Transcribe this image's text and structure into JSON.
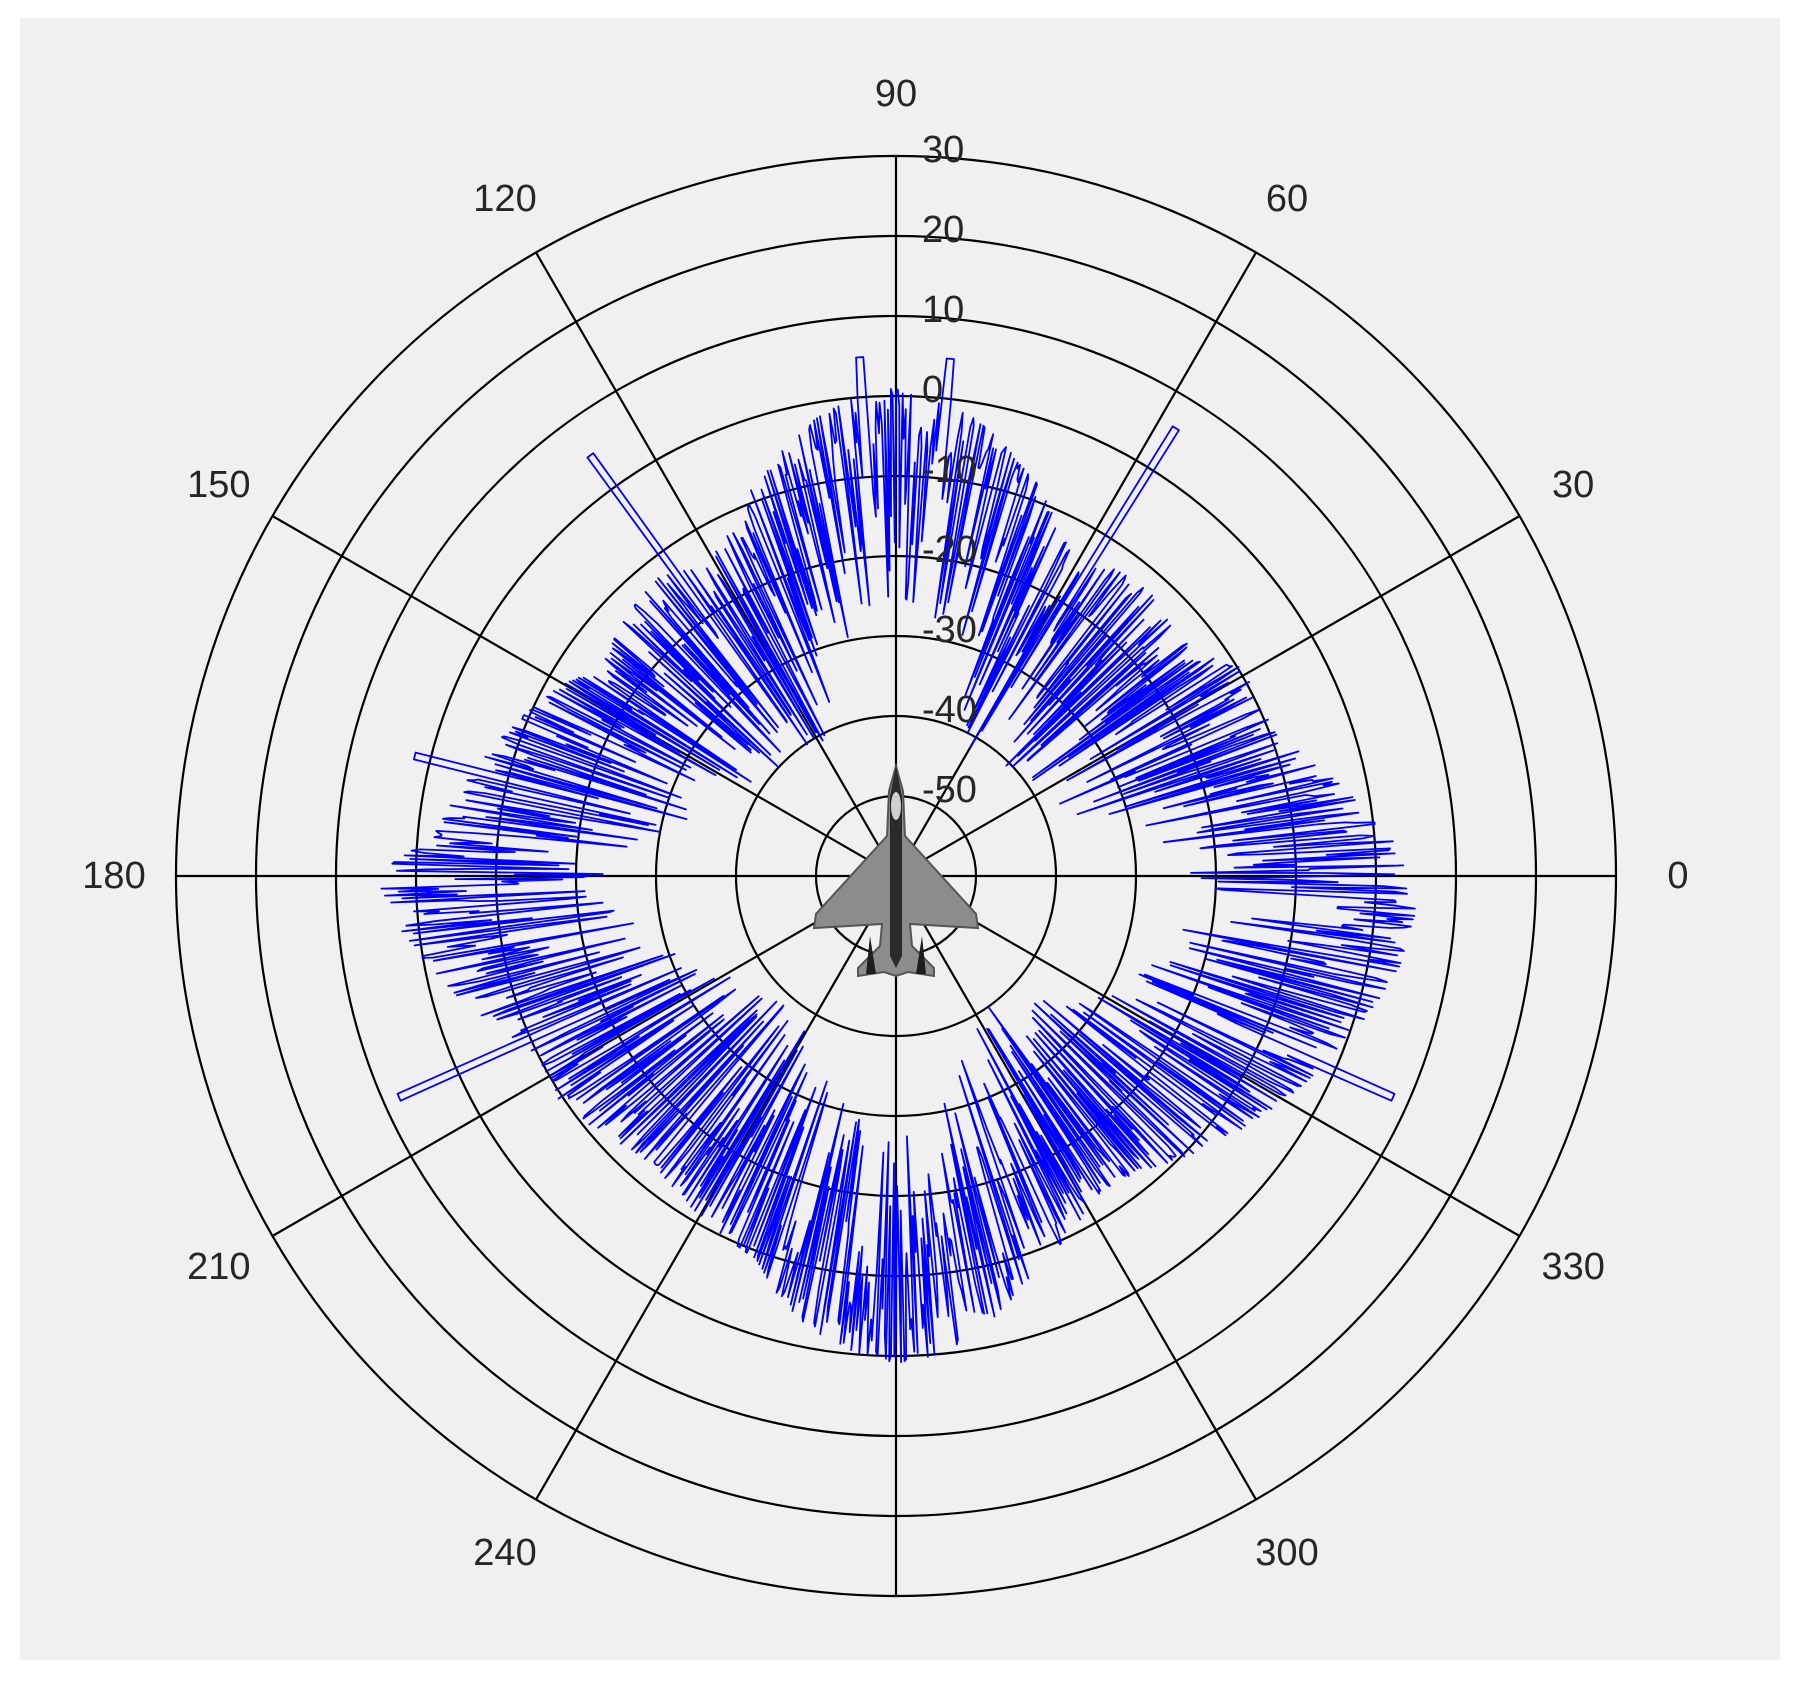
{
  "chart_data": {
    "type": "polar-line",
    "title": "",
    "angle_unit": "degrees",
    "angle_ticks": [
      0,
      30,
      60,
      90,
      120,
      150,
      180,
      210,
      240,
      270,
      300,
      330
    ],
    "angle_tick_labels": [
      "0",
      "30",
      "60",
      "90",
      "120",
      "150",
      "180",
      "210",
      "240",
      "",
      "300",
      "330"
    ],
    "radial_range": [
      -60,
      30
    ],
    "radial_ticks": [
      -50,
      -40,
      -30,
      -20,
      -10,
      0,
      10,
      20,
      30
    ],
    "radial_tick_labels": [
      "-50",
      "-40",
      "-30",
      "-20",
      "-10",
      "0",
      "10",
      "20",
      "30"
    ],
    "grid": true,
    "center_image": "fighter-aircraft-top-view-icon",
    "colors": {
      "trace": "#0000ff",
      "grid": "#000000",
      "background": "#f0f0f0"
    },
    "series": [
      {
        "name": "",
        "theta_step_deg": 5,
        "theta_start_deg": 0,
        "r_envelope": [
          5,
          2,
          -2,
          -6,
          -9,
          -10,
          -9,
          -12,
          -14,
          -13,
          -12,
          -13,
          -15,
          -12,
          -8,
          -5,
          -2,
          0,
          1,
          0,
          -2,
          -5,
          -8,
          -12,
          -14,
          -13,
          -12,
          -13,
          -14,
          -15,
          -12,
          -10,
          -8,
          -6,
          -4,
          -2,
          5,
          3,
          0,
          -3,
          -6,
          -9,
          -10,
          -9,
          -11,
          -12,
          -13,
          -12,
          -11,
          -10,
          -9,
          -5,
          -2,
          0,
          1,
          0,
          -2,
          -5,
          -8,
          -10,
          -12,
          -13,
          -12,
          -10,
          -8,
          -6,
          -4,
          -2,
          0,
          2,
          4,
          5
        ],
        "spikes": [
          {
            "theta": 58,
            "r": 6
          },
          {
            "theta": 84,
            "r": 5
          },
          {
            "theta": 94,
            "r": 5
          },
          {
            "theta": 126,
            "r": 5
          },
          {
            "theta": 166,
            "r": 2
          },
          {
            "theta": 204,
            "r": 8
          },
          {
            "theta": 336,
            "r": 8
          }
        ]
      }
    ]
  }
}
